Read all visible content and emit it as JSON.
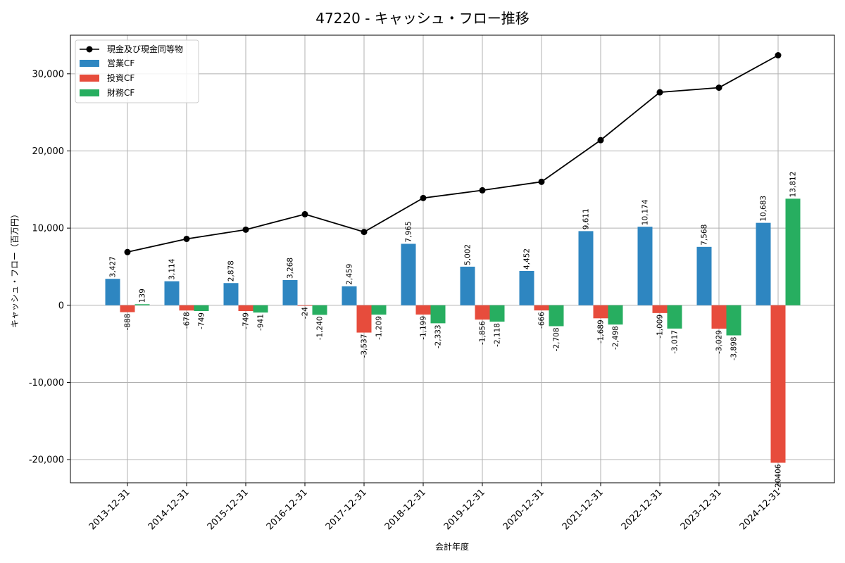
{
  "chart_data": {
    "type": "bar",
    "title": "47220 - キャッシュ・フロー推移",
    "xlabel": "会計年度",
    "ylabel": "キャッシュ・フロー（百万円）",
    "ylim": [
      -23000,
      35000
    ],
    "yticks": [
      -20000,
      -10000,
      0,
      10000,
      20000,
      30000
    ],
    "ytick_labels": [
      "-20,000",
      "-10,000",
      "0",
      "10,000",
      "20,000",
      "30,000"
    ],
    "grid": true,
    "legend_position": "top-left",
    "categories": [
      "2013-12-31",
      "2014-12-31",
      "2015-12-31",
      "2016-12-31",
      "2017-12-31",
      "2018-12-31",
      "2019-12-31",
      "2020-12-31",
      "2021-12-31",
      "2022-12-31",
      "2023-12-31",
      "2024-12-31"
    ],
    "series": [
      {
        "name": "営業CF",
        "kind": "bar",
        "color": "#2e86c1",
        "values": [
          3427,
          3114,
          2878,
          3268,
          2459,
          7965,
          5002,
          4452,
          9611,
          10174,
          7568,
          10683
        ],
        "labels": [
          "3,427",
          "3,114",
          "2,878",
          "3,268",
          "2,459",
          "7,965",
          "5,002",
          "4,452",
          "9,611",
          "10,174",
          "7,568",
          "10,683"
        ]
      },
      {
        "name": "投資CF",
        "kind": "bar",
        "color": "#e74c3c",
        "values": [
          -888,
          -678,
          -749,
          -24,
          -3537,
          -1199,
          -1856,
          -666,
          -1689,
          -1009,
          -3029,
          -20406
        ],
        "labels": [
          "-888",
          "-678",
          "-749",
          "-24",
          "-3,537",
          "-1,199",
          "-1,856",
          "-666",
          "-1,689",
          "-1,009",
          "-3,029",
          "-20406"
        ]
      },
      {
        "name": "財務CF",
        "kind": "bar",
        "color": "#27ae60",
        "values": [
          139,
          -749,
          -941,
          -1240,
          -1209,
          -2333,
          -2118,
          -2708,
          -2498,
          -3017,
          -3898,
          13812
        ],
        "labels": [
          "139",
          "-749",
          "-941",
          "-1,240",
          "-1,209",
          "-2,333",
          "-2,118",
          "-2,708",
          "-2,498",
          "-3,017",
          "-3,898",
          "13,812"
        ]
      },
      {
        "name": "現金及び現金同等物",
        "kind": "line",
        "color": "#000000",
        "values": [
          6900,
          8600,
          9800,
          11800,
          9500,
          13900,
          14900,
          16000,
          21400,
          27600,
          28200,
          32400
        ]
      }
    ]
  }
}
